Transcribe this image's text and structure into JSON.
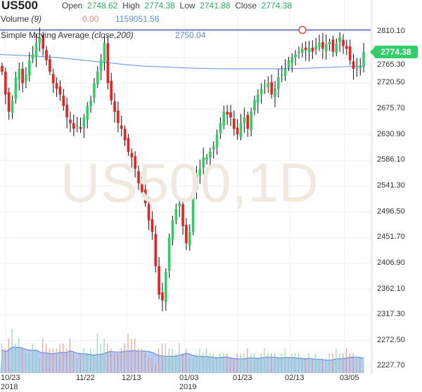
{
  "symbol": "US500",
  "ohlc": {
    "open_label": "Open",
    "open": "2748.62",
    "high_label": "High",
    "high": "2774.38",
    "low_label": "Low",
    "low": "2741.88",
    "close_label": "Close",
    "close": "2774.38"
  },
  "volume": {
    "label": "Volume",
    "period": "(9)",
    "value1": "0.00",
    "value2": "1159051.56"
  },
  "sma": {
    "label": "Simple Moving Average",
    "params": "(close,200)",
    "value": "2750.04"
  },
  "watermark": "US500,1D",
  "last_price": "2774.38",
  "price_axis": [
    "2810.10",
    "2765.30",
    "2720.50",
    "2675.70",
    "2630.90",
    "2586.10",
    "2541.30",
    "2496.50",
    "2451.70",
    "2406.90",
    "2362.10",
    "2317.30",
    "2272.50",
    "2227.70"
  ],
  "date_axis": [
    {
      "label": "10/23",
      "year": "2018"
    },
    {
      "label": "11/22"
    },
    {
      "label": "12/13"
    },
    {
      "label": "01/03",
      "year": "2019"
    },
    {
      "label": "01/23"
    },
    {
      "label": "02/13"
    },
    {
      "label": "03/05"
    }
  ],
  "colors": {
    "up": "#2dcf66",
    "down": "#f21d1d",
    "sma": "#5b8fe8",
    "hline": "#7b7fc4",
    "vol_area": "#a9c4f2"
  },
  "chart_data": {
    "type": "candlestick",
    "closes": [
      2740,
      2700,
      2670,
      2690,
      2730,
      2745,
      2720,
      2735,
      2760,
      2770,
      2790,
      2800,
      2780,
      2760,
      2740,
      2720,
      2710,
      2700,
      2680,
      2660,
      2650,
      2640,
      2645,
      2640,
      2660,
      2680,
      2690,
      2720,
      2740,
      2760,
      2790,
      2720,
      2690,
      2670,
      2650,
      2640,
      2620,
      2600,
      2590,
      2570,
      2545,
      2530,
      2510,
      2480,
      2460,
      2400,
      2350,
      2340,
      2390,
      2450,
      2480,
      2500,
      2510,
      2470,
      2440,
      2460,
      2530,
      2560,
      2570,
      2590,
      2590,
      2600,
      2610,
      2630,
      2650,
      2670,
      2665,
      2660,
      2640,
      2630,
      2650,
      2660,
      2640,
      2670,
      2690,
      2700,
      2710,
      2715,
      2720,
      2700,
      2710,
      2730,
      2735,
      2745,
      2760,
      2765,
      2770,
      2775,
      2780,
      2778,
      2782,
      2775,
      2785,
      2790,
      2780,
      2788,
      2792,
      2775,
      2790,
      2800,
      2785,
      2780,
      2760,
      2745,
      2750,
      2748.62,
      2774.38
    ],
    "volumes": [
      6,
      5,
      7,
      9,
      6,
      7,
      5,
      4,
      4,
      6,
      5,
      3,
      7,
      6,
      5,
      5,
      5,
      6,
      6,
      5,
      7,
      4,
      3,
      4,
      5,
      4,
      5,
      4,
      8,
      6,
      7,
      6,
      5,
      4,
      4,
      5,
      6,
      8,
      7,
      7,
      5,
      5,
      4,
      3,
      3,
      2,
      5,
      6,
      6,
      5,
      5,
      4,
      6,
      4,
      5,
      3,
      3,
      4,
      5,
      4,
      5,
      4,
      4,
      3,
      4,
      4,
      4,
      3,
      3,
      4,
      4,
      4,
      5,
      4,
      4,
      3,
      4,
      5,
      4,
      4,
      4,
      3,
      4,
      5,
      3,
      4,
      4,
      4,
      3,
      3,
      4,
      3,
      4,
      3,
      3,
      3,
      4,
      4,
      5,
      4,
      4,
      5,
      4,
      4,
      3,
      3,
      3
    ],
    "sma": [
      2770,
      2768,
      2765,
      2760,
      2755,
      2750,
      2748,
      2746,
      2745,
      2745,
      2745,
      2746,
      2748,
      2750
    ],
    "hline_price": 2813,
    "ylim": [
      2200,
      2830
    ]
  }
}
